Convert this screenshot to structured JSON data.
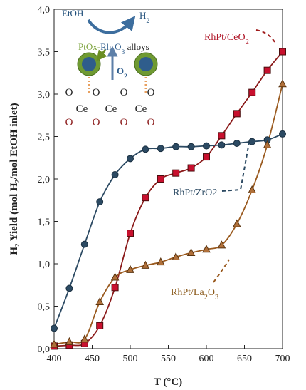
{
  "chart_data": {
    "type": "line",
    "title": "",
    "xlabel": "T (°C)",
    "ylabel": "H₂ Yield (mol H₂/mol EtOH inlet)",
    "xlim": [
      400,
      700
    ],
    "ylim": [
      0,
      4
    ],
    "x_ticks": [
      "400",
      "450",
      "500",
      "550",
      "600",
      "650",
      "700"
    ],
    "y_ticks": [
      "0,0",
      "0,5",
      "1,0",
      "1,5",
      "2,0",
      "2,5",
      "3,0",
      "3,5",
      "4,0"
    ],
    "grid": false,
    "series": [
      {
        "name": "RhPt/CeO₂",
        "label_parts": [
          "RhPt/CeO",
          "2"
        ],
        "marker": "square",
        "line_color": "#8b1a1a",
        "marker_color": "#c8102e",
        "x": [
          400,
          420,
          440,
          460,
          480,
          500,
          520,
          540,
          560,
          580,
          600,
          620,
          640,
          660,
          680,
          700
        ],
        "y": [
          0.03,
          0.04,
          0.06,
          0.27,
          0.72,
          1.36,
          1.78,
          2.0,
          2.07,
          2.13,
          2.26,
          2.51,
          2.77,
          3.02,
          3.28,
          3.5
        ]
      },
      {
        "name": "RhPt/ZrO2",
        "label_parts": [
          "RhPt/ZrO2"
        ],
        "marker": "circle",
        "line_color": "#2c4a63",
        "marker_color": "#2c4a63",
        "x": [
          400,
          420,
          440,
          460,
          480,
          500,
          520,
          540,
          560,
          580,
          600,
          620,
          640,
          660,
          680,
          700
        ],
        "y": [
          0.24,
          0.71,
          1.23,
          1.73,
          2.05,
          2.24,
          2.35,
          2.36,
          2.38,
          2.38,
          2.39,
          2.4,
          2.42,
          2.44,
          2.46,
          2.53
        ]
      },
      {
        "name": "RhPt/La₂O₃",
        "label_parts": [
          "RhPt/La",
          "2",
          "O",
          "3"
        ],
        "marker": "triangle",
        "line_color": "#9a5a1f",
        "marker_color": "#b0703a",
        "x": [
          400,
          420,
          440,
          460,
          480,
          500,
          520,
          540,
          560,
          580,
          600,
          620,
          640,
          660,
          680,
          700
        ],
        "y": [
          0.05,
          0.08,
          0.11,
          0.55,
          0.84,
          0.93,
          0.98,
          1.02,
          1.08,
          1.13,
          1.17,
          1.22,
          1.47,
          1.87,
          2.4,
          3.12
        ]
      }
    ],
    "inset": {
      "etoh": "EtOH",
      "h2_parts": [
        "H",
        "2"
      ],
      "alloy_prefix": "PtOx-",
      "alloy_rh_parts": [
        "Rh",
        "2",
        "O",
        "3"
      ],
      "alloy_suffix": " alloys",
      "o2_parts": [
        "O",
        "2"
      ],
      "row1": [
        "O",
        "O",
        "O",
        "O"
      ],
      "row2": [
        "Ce",
        "Ce",
        "Ce"
      ],
      "row3": [
        "O",
        "O",
        "O",
        "O"
      ]
    }
  }
}
